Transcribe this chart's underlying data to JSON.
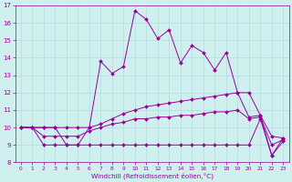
{
  "xlabel": "Windchill (Refroidissement éolien,°C)",
  "x": [
    0,
    1,
    2,
    3,
    4,
    5,
    6,
    7,
    8,
    9,
    10,
    11,
    12,
    13,
    14,
    15,
    16,
    17,
    18,
    19,
    20,
    21,
    22,
    23
  ],
  "wc_main": [
    10,
    10,
    10,
    10,
    9,
    9,
    10,
    13.8,
    13.1,
    13.5,
    16.7,
    16.2,
    15.1,
    15.6,
    13.7,
    14.7,
    14.3,
    13.3,
    14.3,
    12.0,
    10.6,
    10.7,
    8.4,
    9.4
  ],
  "wc_upper": [
    10,
    10,
    10,
    10,
    10,
    10,
    10,
    10.2,
    10.5,
    10.8,
    11.0,
    11.2,
    11.3,
    11.4,
    11.5,
    11.6,
    11.7,
    11.8,
    11.9,
    12.0,
    12.0,
    10.7,
    9.5,
    9.4
  ],
  "wc_lower": [
    10,
    10,
    9.0,
    9.0,
    9.0,
    9.0,
    9.0,
    9.0,
    9.0,
    9.0,
    9.0,
    9.0,
    9.0,
    9.0,
    9.0,
    9.0,
    9.0,
    9.0,
    9.0,
    9.0,
    9.0,
    10.5,
    8.4,
    9.2
  ],
  "wc_mid": [
    10,
    10,
    9.5,
    9.5,
    9.5,
    9.5,
    9.8,
    10.0,
    10.2,
    10.3,
    10.5,
    10.5,
    10.6,
    10.6,
    10.7,
    10.7,
    10.8,
    10.9,
    10.9,
    11.0,
    10.5,
    10.6,
    9.0,
    9.3
  ],
  "line_color": "#990099",
  "bg_color": "#d0efef",
  "grid_color": "#b0dede",
  "ylim": [
    8,
    17
  ],
  "yticks": [
    8,
    9,
    10,
    11,
    12,
    13,
    14,
    15,
    16,
    17
  ],
  "xticks": [
    0,
    1,
    2,
    3,
    4,
    5,
    6,
    7,
    8,
    9,
    10,
    11,
    12,
    13,
    14,
    15,
    16,
    17,
    18,
    19,
    20,
    21,
    22,
    23
  ]
}
